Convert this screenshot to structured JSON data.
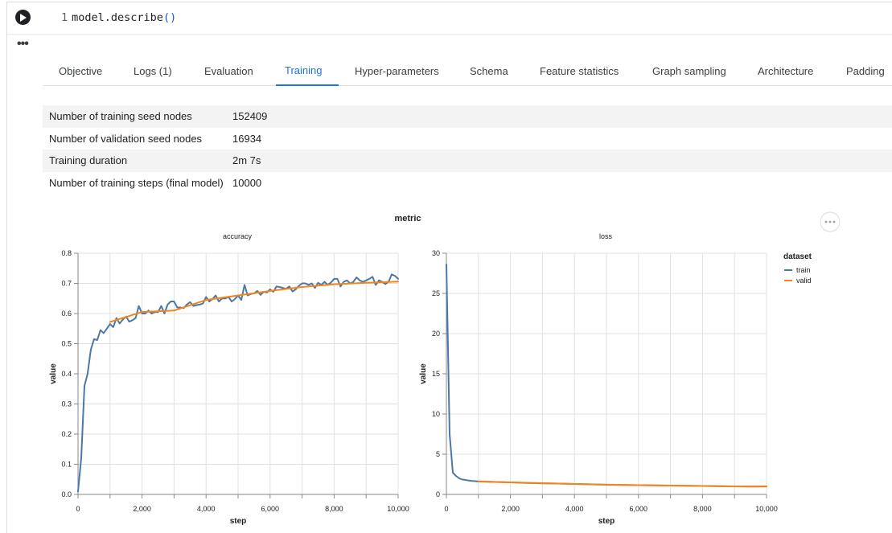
{
  "cell": {
    "line_number": "1",
    "code_text": "model.describe",
    "code_parens": "()"
  },
  "tabs": [
    {
      "label": "Objective"
    },
    {
      "label": "Logs (1)"
    },
    {
      "label": "Evaluation"
    },
    {
      "label": "Training",
      "active": true
    },
    {
      "label": "Hyper-parameters"
    },
    {
      "label": "Schema"
    },
    {
      "label": "Feature statistics"
    },
    {
      "label": "Graph sampling"
    },
    {
      "label": "Architecture"
    },
    {
      "label": "Padding"
    }
  ],
  "info_rows": [
    {
      "key": "Number of training seed nodes",
      "value": "152409"
    },
    {
      "key": "Number of validation seed nodes",
      "value": "16934"
    },
    {
      "key": "Training duration",
      "value": "2m 7s"
    },
    {
      "key": "Number of training steps (final model)",
      "value": "10000"
    }
  ],
  "chart_data": {
    "type": "line",
    "title": "metric",
    "legend": {
      "title": "dataset",
      "entries": [
        "train",
        "valid"
      ],
      "placement": "right"
    },
    "colors": {
      "train": "#4c78a8",
      "valid": "#f58518"
    },
    "facets": [
      {
        "title": "accuracy",
        "xlabel": "step",
        "ylabel": "value",
        "xlim": [
          0,
          10000
        ],
        "ylim": [
          0,
          0.8
        ],
        "xticks": [
          0,
          2000,
          4000,
          6000,
          8000,
          10000
        ],
        "xtick_labels": [
          "0",
          "2,000",
          "4,000",
          "6,000",
          "8,000",
          "10,000"
        ],
        "yticks": [
          0,
          0.1,
          0.2,
          0.3,
          0.4,
          0.5,
          0.6,
          0.7,
          0.8
        ],
        "ytick_labels": [
          "0.0",
          "0.1",
          "0.2",
          "0.3",
          "0.4",
          "0.5",
          "0.6",
          "0.7",
          "0.8"
        ],
        "grid": true,
        "series": [
          {
            "name": "train",
            "x": [
              0,
              100,
              200,
              300,
              400,
              500,
              600,
              700,
              800,
              900,
              1000,
              1100,
              1200,
              1300,
              1400,
              1500,
              1600,
              1700,
              1800,
              1900,
              2000,
              2100,
              2200,
              2300,
              2400,
              2500,
              2600,
              2700,
              2800,
              2900,
              3000,
              3100,
              3200,
              3300,
              3400,
              3500,
              3600,
              3700,
              3800,
              3900,
              4000,
              4100,
              4200,
              4300,
              4400,
              4500,
              4600,
              4700,
              4800,
              4900,
              5000,
              5100,
              5200,
              5300,
              5400,
              5500,
              5600,
              5700,
              5800,
              5900,
              6000,
              6100,
              6200,
              6300,
              6400,
              6500,
              6600,
              6700,
              6800,
              6900,
              7000,
              7100,
              7200,
              7300,
              7400,
              7500,
              7600,
              7700,
              7800,
              7900,
              8000,
              8100,
              8200,
              8300,
              8400,
              8500,
              8600,
              8700,
              8800,
              8900,
              9000,
              9100,
              9200,
              9300,
              9400,
              9500,
              9600,
              9700,
              9800,
              9900,
              10000
            ],
            "y": [
              0.01,
              0.12,
              0.36,
              0.4,
              0.48,
              0.515,
              0.512,
              0.545,
              0.535,
              0.55,
              0.565,
              0.555,
              0.585,
              0.567,
              0.58,
              0.59,
              0.573,
              0.578,
              0.585,
              0.625,
              0.6,
              0.6,
              0.61,
              0.6,
              0.605,
              0.605,
              0.625,
              0.6,
              0.63,
              0.64,
              0.64,
              0.62,
              0.62,
              0.618,
              0.63,
              0.638,
              0.625,
              0.628,
              0.63,
              0.633,
              0.655,
              0.64,
              0.648,
              0.66,
              0.64,
              0.65,
              0.65,
              0.655,
              0.64,
              0.648,
              0.66,
              0.645,
              0.695,
              0.66,
              0.665,
              0.667,
              0.675,
              0.662,
              0.672,
              0.67,
              0.68,
              0.672,
              0.69,
              0.688,
              0.685,
              0.682,
              0.69,
              0.673,
              0.68,
              0.692,
              0.7,
              0.7,
              0.695,
              0.7,
              0.685,
              0.702,
              0.695,
              0.705,
              0.695,
              0.703,
              0.715,
              0.715,
              0.69,
              0.705,
              0.71,
              0.7,
              0.705,
              0.72,
              0.71,
              0.705,
              0.71,
              0.715,
              0.722,
              0.695,
              0.71,
              0.705,
              0.698,
              0.705,
              0.73,
              0.725,
              0.715
            ]
          },
          {
            "name": "valid",
            "x": [
              1000,
              2000,
              3000,
              4000,
              5000,
              6000,
              7000,
              8000,
              9000,
              10000
            ],
            "y": [
              0.572,
              0.605,
              0.61,
              0.645,
              0.66,
              0.675,
              0.688,
              0.697,
              0.702,
              0.706
            ]
          }
        ]
      },
      {
        "title": "loss",
        "xlabel": "step",
        "ylabel": "value",
        "xlim": [
          0,
          10000
        ],
        "ylim": [
          0,
          30
        ],
        "xticks": [
          0,
          2000,
          4000,
          6000,
          8000,
          10000
        ],
        "xtick_labels": [
          "0",
          "2,000",
          "4,000",
          "6,000",
          "8,000",
          "10,000"
        ],
        "yticks": [
          0,
          5,
          10,
          15,
          20,
          25,
          30
        ],
        "ytick_labels": [
          "0",
          "5",
          "10",
          "15",
          "20",
          "25",
          "30"
        ],
        "grid": true,
        "series": [
          {
            "name": "train",
            "x": [
              0,
              100,
              200,
              300,
              400,
              500,
              600,
              700,
              800,
              900,
              1000,
              1500,
              2000,
              2500,
              3000,
              3500,
              4000,
              4500,
              5000,
              5500,
              6000,
              6500,
              7000,
              7500,
              8000,
              8500,
              9000,
              9500,
              10000
            ],
            "y": [
              28.6,
              7.5,
              2.7,
              2.3,
              2.0,
              1.85,
              1.8,
              1.72,
              1.68,
              1.65,
              1.6,
              1.55,
              1.5,
              1.42,
              1.38,
              1.35,
              1.3,
              1.25,
              1.2,
              1.18,
              1.15,
              1.12,
              1.1,
              1.08,
              1.05,
              1.03,
              1.0,
              0.98,
              1.0
            ]
          },
          {
            "name": "valid",
            "x": [
              1000,
              2000,
              3000,
              4000,
              5000,
              6000,
              7000,
              8000,
              9000,
              10000
            ],
            "y": [
              1.62,
              1.5,
              1.4,
              1.3,
              1.22,
              1.15,
              1.1,
              1.05,
              1.0,
              0.98
            ]
          }
        ]
      }
    ]
  }
}
